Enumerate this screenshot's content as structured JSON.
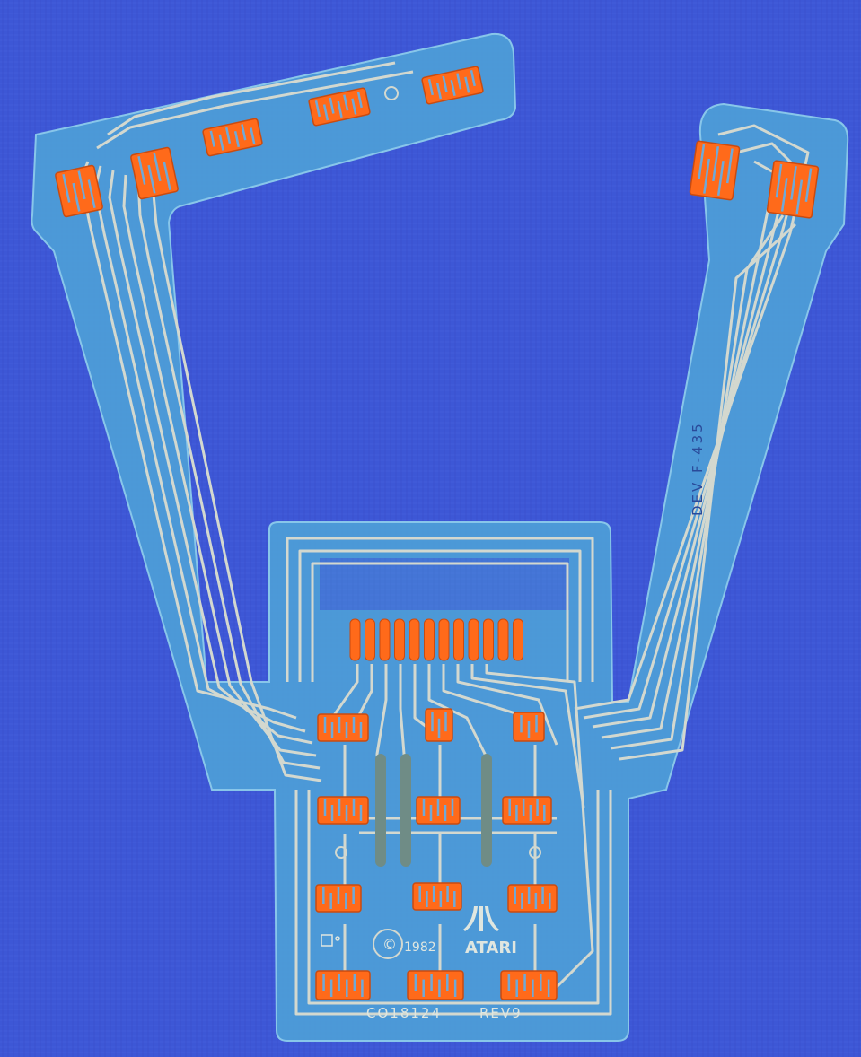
{
  "labels": {
    "part_number": "CO18124",
    "revision": "REV9",
    "copyright_year": "1982",
    "brand": "ATARI",
    "dev_code": "DEV F-435"
  },
  "colors": {
    "background": "#3d57d6",
    "film": "#4e9fd8",
    "film_edge": "#8fd0ec",
    "trace": "#d3d8cf",
    "pad": "#ff6a1a",
    "pad_dark": "#c94b10",
    "shunt": "#6f8c86"
  }
}
